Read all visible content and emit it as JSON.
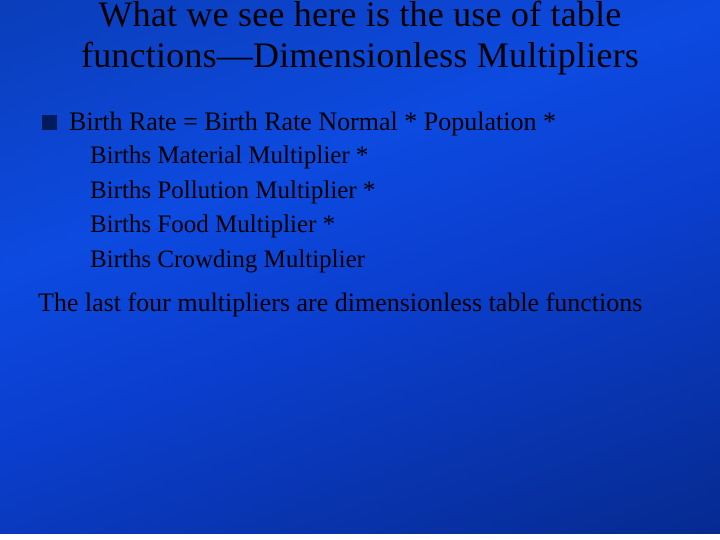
{
  "slide": {
    "background_gradient": [
      "#0a3db8",
      "#0d4ae0",
      "#0b3fd0",
      "#062a90"
    ],
    "text_color": "#000000",
    "bullet_color": "#001a5c",
    "font_family": "Times New Roman",
    "title": {
      "text": "What we see here is the use of table functions—Dimensionless Multipliers",
      "fontsize": 36,
      "align": "center"
    },
    "bullet": {
      "lead": "Birth Rate = Birth Rate Normal * Population *",
      "sublines": [
        "Births Material Multiplier *",
        "Births Pollution Multiplier *",
        "Births Food Multiplier  *",
        "Births Crowding Multiplier"
      ],
      "lead_fontsize": 26,
      "sub_fontsize": 25
    },
    "closing": {
      "text": "The last four multipliers are dimensionless table functions",
      "fontsize": 26
    }
  }
}
